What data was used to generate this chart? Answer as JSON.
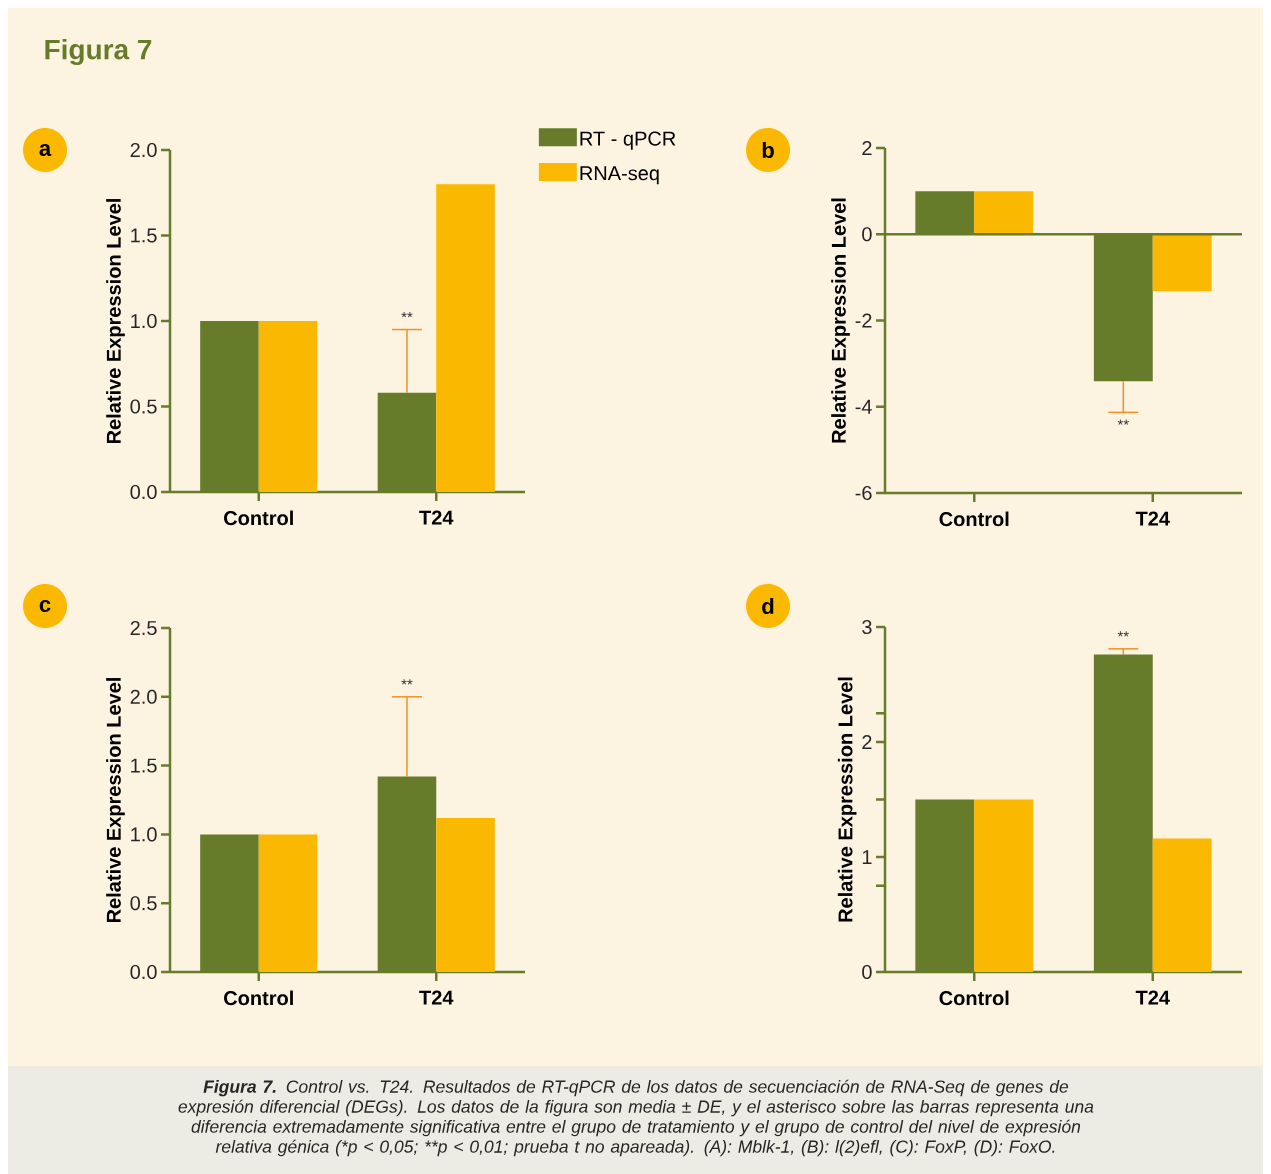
{
  "chart_data": [
    {
      "type": "bar",
      "title": "a",
      "ylabel": "Relative Expression Level",
      "categories": [
        "Control",
        "T24"
      ],
      "series": [
        {
          "name": "RT - qPCR",
          "color": "#667c2b",
          "values": [
            1.0,
            0.58
          ],
          "errors": [
            null,
            [
              0.58,
              0.95
            ]
          ]
        },
        {
          "name": "RNA-seq",
          "color": "#fbb800",
          "values": [
            1.0,
            1.8
          ]
        }
      ],
      "ylim": [
        0,
        2
      ],
      "yticks": [
        {
          "value": 0,
          "label": "0.0"
        },
        0.5,
        {
          "value": 1,
          "label": "1.0"
        },
        1.5,
        {
          "value": 2,
          "label": "2.0"
        }
      ],
      "legend": "top right",
      "annotations": [
        "**",
        "Figura 7"
      ]
    },
    {
      "type": "bar",
      "title": "b",
      "ylabel": "Relative Expression Level",
      "categories": [
        "Control",
        "T24"
      ],
      "series": [
        {
          "color": "#667c2b",
          "values": [
            1.0,
            -3.41
          ],
          "errors": [
            null,
            [
              -4.13,
              -3.41
            ]
          ]
        },
        {
          "color": "#fbb800",
          "values": [
            1.0,
            -1.32
          ]
        }
      ],
      "ylim": [
        -6,
        2
      ],
      "yticks": [
        -6,
        -4,
        -2,
        0,
        2
      ],
      "ref_lines": [
        {
          "axis": "y",
          "value": 0,
          "color": "#667c2b"
        }
      ],
      "annotations": [
        "**"
      ]
    },
    {
      "type": "bar",
      "title": "c",
      "ylabel": "Relative Expression Level",
      "categories": [
        "Control",
        "T24"
      ],
      "series": [
        {
          "color": "#667c2b",
          "values": [
            1.0,
            1.42
          ],
          "errors": [
            null,
            [
              1.42,
              2.0
            ]
          ]
        },
        {
          "color": "#fbb800",
          "values": [
            1.0,
            1.12
          ]
        }
      ],
      "ylim": [
        0,
        2.5
      ],
      "yticks": [
        {
          "value": 0,
          "label": "0.0"
        },
        0.5,
        {
          "value": 1,
          "label": "1.0"
        },
        1.5,
        {
          "value": 2,
          "label": "2.0"
        },
        2.5
      ],
      "annotations": [
        "**"
      ]
    },
    {
      "type": "bar",
      "title": "d",
      "ylabel": "Relative Expression Level",
      "categories": [
        "Control",
        "T24"
      ],
      "series": [
        {
          "color": "#667c2b",
          "values": [
            1.5,
            2.76
          ],
          "errors": [
            null,
            [
              2.76,
              2.81
            ]
          ]
        },
        {
          "color": "#fbb800",
          "values": [
            1.5,
            1.16
          ]
        }
      ],
      "ylim": [
        0,
        3
      ],
      "yticks": [
        0,
        {
          "value": 0.75,
          "label": null
        },
        1,
        {
          "value": 1.5,
          "label": null
        },
        2,
        {
          "value": 2.25,
          "label": null
        },
        3
      ],
      "annotations": [
        "**",
        "**Figura 7.** Control vs. T24. Resultados de RT-qPCR de los datos de secuenciación de RNA-Seq de genes de expresión diferencial (DEGs). Los datos de la figura son media ± DE, y el asterisco sobre las barras representa una diferencia extremadamente significativa entre el grupo de tratamiento y el grupo de control del nivel de expresión relativa génica (*p < 0,05; **p < 0,01; prueba t no apareada). (A): Mblk-1, (B): l(2)efl, (C): FoxP, (D): FoxO."
      ]
    }
  ]
}
